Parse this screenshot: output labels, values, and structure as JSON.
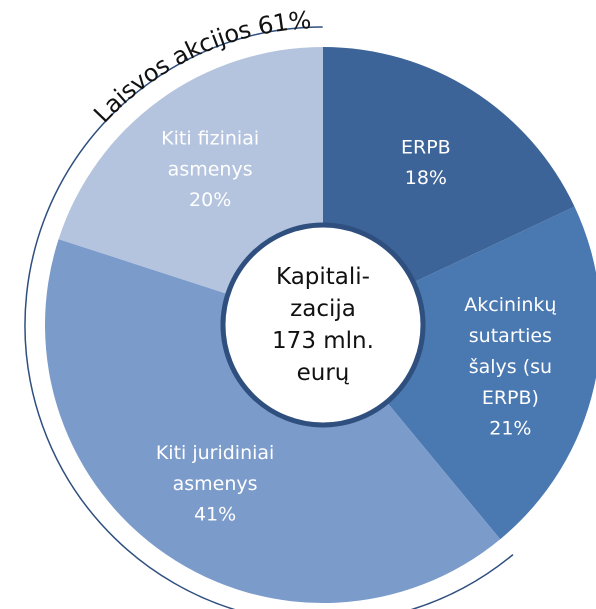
{
  "chart_data": {
    "type": "donut",
    "categories": [
      "ERPB",
      "Akcininkų\nsutarties\nšalys (su\nERPB)",
      "Kiti juridiniai\nasmenys",
      "Kiti fiziniai\nasmenys"
    ],
    "values": [
      18,
      21,
      41,
      20
    ],
    "value_labels": [
      "18%",
      "21%",
      "41%",
      "20%"
    ],
    "colors": [
      "#3d6498",
      "#4a78b0",
      "#7b9bcb",
      "#b4c4de"
    ],
    "center_label": "Kapitali-\nzacija\n173 mln.\neurų",
    "annotation": "Laisvos akcijos 61%"
  }
}
